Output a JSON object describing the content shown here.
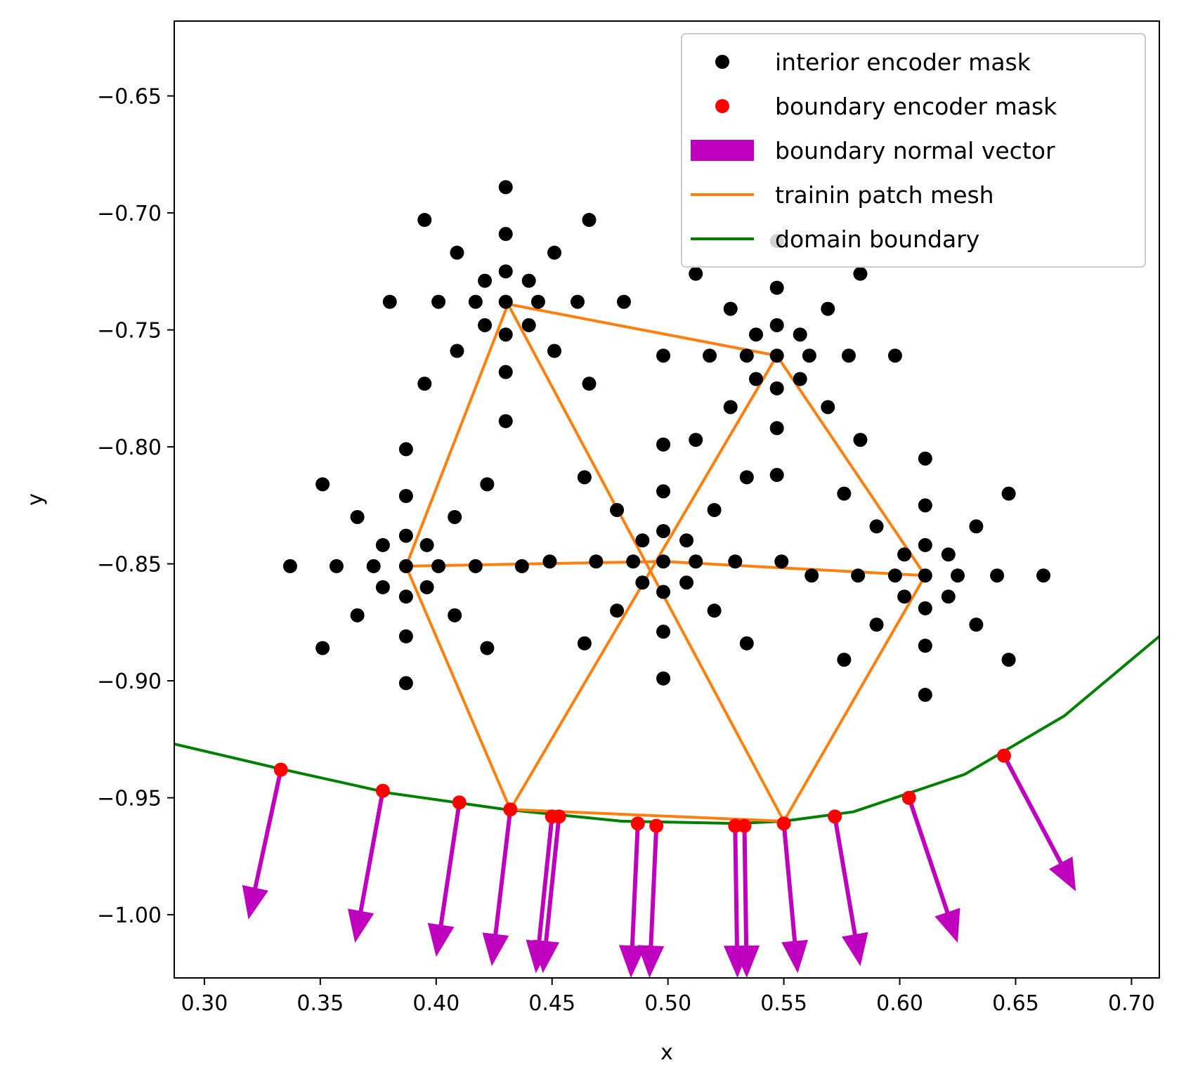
{
  "chart_data": {
    "type": "scatter",
    "xlabel": "x",
    "ylabel": "y",
    "xlim": [
      0.287,
      0.712
    ],
    "ylim": [
      -1.027,
      -0.618
    ],
    "x_ticks": [
      {
        "v": 0.3,
        "label": "0.30"
      },
      {
        "v": 0.35,
        "label": "0.35"
      },
      {
        "v": 0.4,
        "label": "0.40"
      },
      {
        "v": 0.45,
        "label": "0.45"
      },
      {
        "v": 0.5,
        "label": "0.50"
      },
      {
        "v": 0.55,
        "label": "0.55"
      },
      {
        "v": 0.6,
        "label": "0.60"
      },
      {
        "v": 0.65,
        "label": "0.65"
      },
      {
        "v": 0.7,
        "label": "0.70"
      }
    ],
    "y_ticks": [
      {
        "v": -0.65,
        "label": "−0.65"
      },
      {
        "v": -0.7,
        "label": "−0.70"
      },
      {
        "v": -0.75,
        "label": "−0.75"
      },
      {
        "v": -0.8,
        "label": "−0.80"
      },
      {
        "v": -0.85,
        "label": "−0.85"
      },
      {
        "v": -0.9,
        "label": "−0.90"
      },
      {
        "v": -0.95,
        "label": "−0.95"
      },
      {
        "v": -1.0,
        "label": "−1.00"
      }
    ],
    "grid": false,
    "legend_position": "top-right",
    "legend": [
      {
        "label": "interior encoder mask",
        "kind": "marker",
        "color": "#000000"
      },
      {
        "label": "boundary encoder mask",
        "kind": "marker",
        "color": "#ff0000"
      },
      {
        "label": "boundary normal vector",
        "kind": "patch",
        "color": "#bf00bf"
      },
      {
        "label": "trainin patch mesh",
        "kind": "line",
        "color": "#ff7f0e"
      },
      {
        "label": "domain boundary",
        "kind": "line",
        "color": "#008000"
      }
    ],
    "series": [
      {
        "name": "interior encoder mask",
        "kind": "scatter",
        "color": "#000000",
        "points": [
          [
            0.43,
            -0.689
          ],
          [
            0.43,
            -0.709
          ],
          [
            0.43,
            -0.725
          ],
          [
            0.43,
            -0.738
          ],
          [
            0.43,
            -0.752
          ],
          [
            0.43,
            -0.768
          ],
          [
            0.43,
            -0.789
          ],
          [
            0.395,
            -0.703
          ],
          [
            0.466,
            -0.703
          ],
          [
            0.409,
            -0.717
          ],
          [
            0.451,
            -0.717
          ],
          [
            0.421,
            -0.729
          ],
          [
            0.44,
            -0.729
          ],
          [
            0.38,
            -0.738
          ],
          [
            0.401,
            -0.738
          ],
          [
            0.417,
            -0.738
          ],
          [
            0.444,
            -0.738
          ],
          [
            0.461,
            -0.738
          ],
          [
            0.481,
            -0.738
          ],
          [
            0.421,
            -0.748
          ],
          [
            0.44,
            -0.748
          ],
          [
            0.409,
            -0.759
          ],
          [
            0.451,
            -0.759
          ],
          [
            0.395,
            -0.773
          ],
          [
            0.466,
            -0.773
          ],
          [
            0.387,
            -0.801
          ],
          [
            0.387,
            -0.821
          ],
          [
            0.387,
            -0.838
          ],
          [
            0.387,
            -0.851
          ],
          [
            0.387,
            -0.864
          ],
          [
            0.387,
            -0.881
          ],
          [
            0.387,
            -0.901
          ],
          [
            0.351,
            -0.816
          ],
          [
            0.351,
            -0.886
          ],
          [
            0.422,
            -0.816
          ],
          [
            0.422,
            -0.886
          ],
          [
            0.366,
            -0.83
          ],
          [
            0.408,
            -0.83
          ],
          [
            0.366,
            -0.872
          ],
          [
            0.408,
            -0.872
          ],
          [
            0.377,
            -0.842
          ],
          [
            0.396,
            -0.842
          ],
          [
            0.377,
            -0.86
          ],
          [
            0.396,
            -0.86
          ],
          [
            0.337,
            -0.851
          ],
          [
            0.357,
            -0.851
          ],
          [
            0.373,
            -0.851
          ],
          [
            0.401,
            -0.851
          ],
          [
            0.417,
            -0.851
          ],
          [
            0.437,
            -0.851
          ],
          [
            0.498,
            -0.799
          ],
          [
            0.498,
            -0.819
          ],
          [
            0.498,
            -0.836
          ],
          [
            0.498,
            -0.849
          ],
          [
            0.498,
            -0.862
          ],
          [
            0.498,
            -0.879
          ],
          [
            0.498,
            -0.899
          ],
          [
            0.464,
            -0.813
          ],
          [
            0.464,
            -0.884
          ],
          [
            0.534,
            -0.813
          ],
          [
            0.534,
            -0.884
          ],
          [
            0.478,
            -0.827
          ],
          [
            0.52,
            -0.827
          ],
          [
            0.478,
            -0.87
          ],
          [
            0.52,
            -0.87
          ],
          [
            0.489,
            -0.84
          ],
          [
            0.508,
            -0.84
          ],
          [
            0.489,
            -0.858
          ],
          [
            0.508,
            -0.858
          ],
          [
            0.449,
            -0.849
          ],
          [
            0.469,
            -0.849
          ],
          [
            0.485,
            -0.849
          ],
          [
            0.512,
            -0.849
          ],
          [
            0.529,
            -0.849
          ],
          [
            0.549,
            -0.849
          ],
          [
            0.547,
            -0.712
          ],
          [
            0.547,
            -0.732
          ],
          [
            0.547,
            -0.748
          ],
          [
            0.547,
            -0.761
          ],
          [
            0.547,
            -0.775
          ],
          [
            0.547,
            -0.792
          ],
          [
            0.547,
            -0.812
          ],
          [
            0.512,
            -0.726
          ],
          [
            0.512,
            -0.797
          ],
          [
            0.583,
            -0.726
          ],
          [
            0.583,
            -0.797
          ],
          [
            0.527,
            -0.741
          ],
          [
            0.569,
            -0.741
          ],
          [
            0.527,
            -0.783
          ],
          [
            0.569,
            -0.783
          ],
          [
            0.538,
            -0.752
          ],
          [
            0.557,
            -0.752
          ],
          [
            0.538,
            -0.771
          ],
          [
            0.557,
            -0.771
          ],
          [
            0.498,
            -0.761
          ],
          [
            0.518,
            -0.761
          ],
          [
            0.534,
            -0.761
          ],
          [
            0.561,
            -0.761
          ],
          [
            0.578,
            -0.761
          ],
          [
            0.598,
            -0.761
          ],
          [
            0.611,
            -0.805
          ],
          [
            0.611,
            -0.825
          ],
          [
            0.611,
            -0.842
          ],
          [
            0.611,
            -0.855
          ],
          [
            0.611,
            -0.869
          ],
          [
            0.611,
            -0.885
          ],
          [
            0.611,
            -0.906
          ],
          [
            0.576,
            -0.82
          ],
          [
            0.576,
            -0.891
          ],
          [
            0.647,
            -0.82
          ],
          [
            0.647,
            -0.891
          ],
          [
            0.59,
            -0.834
          ],
          [
            0.633,
            -0.834
          ],
          [
            0.59,
            -0.876
          ],
          [
            0.633,
            -0.876
          ],
          [
            0.602,
            -0.846
          ],
          [
            0.621,
            -0.846
          ],
          [
            0.602,
            -0.864
          ],
          [
            0.621,
            -0.864
          ],
          [
            0.562,
            -0.855
          ],
          [
            0.582,
            -0.855
          ],
          [
            0.598,
            -0.855
          ],
          [
            0.625,
            -0.855
          ],
          [
            0.642,
            -0.855
          ],
          [
            0.662,
            -0.855
          ]
        ]
      },
      {
        "name": "boundary encoder mask",
        "kind": "scatter",
        "color": "#ff0000",
        "points": [
          [
            0.333,
            -0.938
          ],
          [
            0.377,
            -0.947
          ],
          [
            0.41,
            -0.952
          ],
          [
            0.432,
            -0.955
          ],
          [
            0.45,
            -0.958
          ],
          [
            0.453,
            -0.958
          ],
          [
            0.487,
            -0.961
          ],
          [
            0.495,
            -0.962
          ],
          [
            0.529,
            -0.962
          ],
          [
            0.533,
            -0.962
          ],
          [
            0.55,
            -0.961
          ],
          [
            0.572,
            -0.958
          ],
          [
            0.604,
            -0.95
          ],
          [
            0.645,
            -0.932
          ]
        ]
      },
      {
        "name": "boundary normal vector",
        "kind": "quiver",
        "color": "#bf00bf",
        "arrows": [
          [
            0.333,
            -0.938,
            0.319,
            -1.002
          ],
          [
            0.377,
            -0.947,
            0.365,
            -1.012
          ],
          [
            0.41,
            -0.952,
            0.4,
            -1.018
          ],
          [
            0.432,
            -0.955,
            0.424,
            -1.022
          ],
          [
            0.45,
            -0.958,
            0.443,
            -1.025
          ],
          [
            0.453,
            -0.958,
            0.446,
            -1.025
          ],
          [
            0.487,
            -0.961,
            0.484,
            -1.027
          ],
          [
            0.495,
            -0.962,
            0.492,
            -1.027
          ],
          [
            0.529,
            -0.962,
            0.53,
            -1.027
          ],
          [
            0.533,
            -0.962,
            0.534,
            -1.027
          ],
          [
            0.55,
            -0.961,
            0.556,
            -1.025
          ],
          [
            0.572,
            -0.958,
            0.583,
            -1.022
          ],
          [
            0.604,
            -0.95,
            0.625,
            -1.012
          ],
          [
            0.645,
            -0.932,
            0.676,
            -0.99
          ]
        ]
      },
      {
        "name": "trainin patch mesh",
        "kind": "line",
        "color": "#ff7f0e",
        "segments": [
          [
            [
              0.431,
              -0.739
            ],
            [
              0.547,
              -0.761
            ],
            [
              0.611,
              -0.855
            ],
            [
              0.55,
              -0.96
            ],
            [
              0.432,
              -0.955
            ],
            [
              0.387,
              -0.851
            ],
            [
              0.431,
              -0.739
            ]
          ],
          [
            [
              0.387,
              -0.851
            ],
            [
              0.498,
              -0.849
            ],
            [
              0.611,
              -0.855
            ]
          ],
          [
            [
              0.431,
              -0.739
            ],
            [
              0.55,
              -0.96
            ]
          ],
          [
            [
              0.547,
              -0.761
            ],
            [
              0.432,
              -0.955
            ]
          ]
        ]
      },
      {
        "name": "domain boundary",
        "kind": "line",
        "color": "#008000",
        "points": [
          [
            0.287,
            -0.927
          ],
          [
            0.33,
            -0.937
          ],
          [
            0.38,
            -0.948
          ],
          [
            0.43,
            -0.955
          ],
          [
            0.48,
            -0.96
          ],
          [
            0.53,
            -0.961
          ],
          [
            0.55,
            -0.96
          ],
          [
            0.58,
            -0.956
          ],
          [
            0.628,
            -0.94
          ],
          [
            0.671,
            -0.915
          ],
          [
            0.712,
            -0.881
          ]
        ]
      }
    ]
  }
}
